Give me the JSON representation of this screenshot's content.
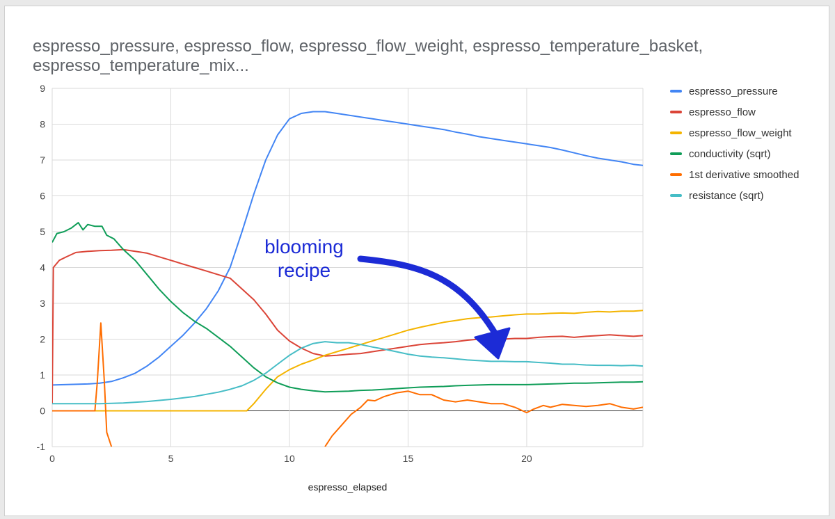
{
  "title_lines": [
    "espresso_pressure, espresso_flow, espresso_flow_weight, espresso_temperature_basket,",
    "espresso_temperature_mix..."
  ],
  "annotation": {
    "line1": "blooming",
    "line2": "recipe",
    "color": "#1c2bd6"
  },
  "chart_data": {
    "type": "line",
    "xlabel": "espresso_elapsed",
    "ylabel": "",
    "xlim": [
      0,
      24.9
    ],
    "ylim": [
      -1,
      9
    ],
    "x_ticks": [
      0,
      5,
      10,
      15,
      20
    ],
    "y_ticks": [
      -1,
      0,
      1,
      2,
      3,
      4,
      5,
      6,
      7,
      8,
      9
    ],
    "grid": true,
    "legend": "right",
    "series": [
      {
        "name": "espresso_pressure",
        "color": "#4285f4",
        "points": [
          [
            0,
            0.72
          ],
          [
            0.5,
            0.73
          ],
          [
            1,
            0.74
          ],
          [
            1.5,
            0.75
          ],
          [
            2,
            0.77
          ],
          [
            2.5,
            0.82
          ],
          [
            3,
            0.92
          ],
          [
            3.5,
            1.05
          ],
          [
            4,
            1.25
          ],
          [
            4.5,
            1.5
          ],
          [
            5,
            1.8
          ],
          [
            5.5,
            2.1
          ],
          [
            6,
            2.45
          ],
          [
            6.5,
            2.85
          ],
          [
            7,
            3.35
          ],
          [
            7.5,
            4.0
          ],
          [
            8,
            5.0
          ],
          [
            8.5,
            6.05
          ],
          [
            9,
            7.0
          ],
          [
            9.5,
            7.7
          ],
          [
            10,
            8.15
          ],
          [
            10.5,
            8.3
          ],
          [
            11,
            8.35
          ],
          [
            11.5,
            8.35
          ],
          [
            12,
            8.3
          ],
          [
            12.5,
            8.25
          ],
          [
            13,
            8.2
          ],
          [
            13.5,
            8.15
          ],
          [
            14,
            8.1
          ],
          [
            14.5,
            8.05
          ],
          [
            15,
            8.0
          ],
          [
            15.5,
            7.95
          ],
          [
            16,
            7.9
          ],
          [
            16.5,
            7.85
          ],
          [
            17,
            7.78
          ],
          [
            17.5,
            7.72
          ],
          [
            18,
            7.65
          ],
          [
            18.5,
            7.6
          ],
          [
            19,
            7.55
          ],
          [
            19.5,
            7.5
          ],
          [
            20,
            7.45
          ],
          [
            20.5,
            7.4
          ],
          [
            21,
            7.35
          ],
          [
            21.5,
            7.28
          ],
          [
            22,
            7.2
          ],
          [
            22.5,
            7.12
          ],
          [
            23,
            7.05
          ],
          [
            23.5,
            7.0
          ],
          [
            24,
            6.95
          ],
          [
            24.5,
            6.88
          ],
          [
            24.9,
            6.85
          ]
        ]
      },
      {
        "name": "espresso_flow",
        "color": "#db4437",
        "points": [
          [
            0,
            0.2
          ],
          [
            0.05,
            4.0
          ],
          [
            0.3,
            4.2
          ],
          [
            0.6,
            4.3
          ],
          [
            1,
            4.42
          ],
          [
            1.5,
            4.45
          ],
          [
            2,
            4.47
          ],
          [
            2.5,
            4.48
          ],
          [
            3,
            4.5
          ],
          [
            3.5,
            4.45
          ],
          [
            4,
            4.4
          ],
          [
            4.5,
            4.3
          ],
          [
            5,
            4.2
          ],
          [
            5.5,
            4.1
          ],
          [
            6,
            4.0
          ],
          [
            6.5,
            3.9
          ],
          [
            7,
            3.8
          ],
          [
            7.5,
            3.7
          ],
          [
            8,
            3.4
          ],
          [
            8.5,
            3.1
          ],
          [
            9,
            2.7
          ],
          [
            9.5,
            2.25
          ],
          [
            10,
            1.95
          ],
          [
            10.5,
            1.75
          ],
          [
            11,
            1.6
          ],
          [
            11.5,
            1.53
          ],
          [
            12,
            1.55
          ],
          [
            12.5,
            1.58
          ],
          [
            13,
            1.6
          ],
          [
            13.5,
            1.65
          ],
          [
            14,
            1.7
          ],
          [
            14.5,
            1.75
          ],
          [
            15,
            1.8
          ],
          [
            15.5,
            1.85
          ],
          [
            16,
            1.88
          ],
          [
            16.5,
            1.9
          ],
          [
            17,
            1.93
          ],
          [
            17.5,
            1.97
          ],
          [
            18,
            2.0
          ],
          [
            18.5,
            2.0
          ],
          [
            19,
            2.0
          ],
          [
            19.5,
            2.02
          ],
          [
            20,
            2.02
          ],
          [
            20.5,
            2.05
          ],
          [
            21,
            2.07
          ],
          [
            21.5,
            2.08
          ],
          [
            22,
            2.05
          ],
          [
            22.5,
            2.08
          ],
          [
            23,
            2.1
          ],
          [
            23.5,
            2.12
          ],
          [
            24,
            2.1
          ],
          [
            24.5,
            2.08
          ],
          [
            24.9,
            2.1
          ]
        ]
      },
      {
        "name": "espresso_flow_weight",
        "color": "#f4b400",
        "points": [
          [
            0,
            0
          ],
          [
            8.2,
            0
          ],
          [
            8.5,
            0.2
          ],
          [
            9,
            0.6
          ],
          [
            9.5,
            0.95
          ],
          [
            10,
            1.15
          ],
          [
            10.5,
            1.3
          ],
          [
            11,
            1.42
          ],
          [
            11.5,
            1.55
          ],
          [
            12,
            1.65
          ],
          [
            12.5,
            1.75
          ],
          [
            13,
            1.85
          ],
          [
            13.5,
            1.95
          ],
          [
            14,
            2.05
          ],
          [
            14.5,
            2.15
          ],
          [
            15,
            2.25
          ],
          [
            15.5,
            2.33
          ],
          [
            16,
            2.4
          ],
          [
            16.5,
            2.47
          ],
          [
            17,
            2.52
          ],
          [
            17.5,
            2.57
          ],
          [
            18,
            2.6
          ],
          [
            18.5,
            2.62
          ],
          [
            19,
            2.65
          ],
          [
            19.5,
            2.68
          ],
          [
            20,
            2.7
          ],
          [
            20.5,
            2.7
          ],
          [
            21,
            2.72
          ],
          [
            21.5,
            2.73
          ],
          [
            22,
            2.72
          ],
          [
            22.5,
            2.75
          ],
          [
            23,
            2.77
          ],
          [
            23.5,
            2.76
          ],
          [
            24,
            2.78
          ],
          [
            24.5,
            2.78
          ],
          [
            24.9,
            2.8
          ]
        ]
      },
      {
        "name": "conductivity (sqrt)",
        "color": "#0f9d58",
        "points": [
          [
            0,
            4.7
          ],
          [
            0.2,
            4.95
          ],
          [
            0.5,
            5.0
          ],
          [
            0.8,
            5.1
          ],
          [
            1.1,
            5.25
          ],
          [
            1.3,
            5.05
          ],
          [
            1.5,
            5.2
          ],
          [
            1.8,
            5.15
          ],
          [
            2.1,
            5.15
          ],
          [
            2.3,
            4.9
          ],
          [
            2.6,
            4.8
          ],
          [
            3,
            4.5
          ],
          [
            3.5,
            4.2
          ],
          [
            4,
            3.8
          ],
          [
            4.5,
            3.4
          ],
          [
            5,
            3.05
          ],
          [
            5.5,
            2.75
          ],
          [
            6,
            2.5
          ],
          [
            6.5,
            2.3
          ],
          [
            7,
            2.05
          ],
          [
            7.5,
            1.8
          ],
          [
            8,
            1.5
          ],
          [
            8.5,
            1.2
          ],
          [
            9,
            0.95
          ],
          [
            9.5,
            0.78
          ],
          [
            10,
            0.66
          ],
          [
            10.5,
            0.6
          ],
          [
            11,
            0.56
          ],
          [
            11.5,
            0.53
          ],
          [
            12,
            0.54
          ],
          [
            12.5,
            0.55
          ],
          [
            13,
            0.57
          ],
          [
            13.5,
            0.58
          ],
          [
            14,
            0.6
          ],
          [
            14.5,
            0.62
          ],
          [
            15,
            0.64
          ],
          [
            15.5,
            0.66
          ],
          [
            16,
            0.67
          ],
          [
            16.5,
            0.68
          ],
          [
            17,
            0.7
          ],
          [
            17.5,
            0.71
          ],
          [
            18,
            0.72
          ],
          [
            18.5,
            0.73
          ],
          [
            19,
            0.73
          ],
          [
            19.5,
            0.73
          ],
          [
            20,
            0.73
          ],
          [
            20.5,
            0.74
          ],
          [
            21,
            0.75
          ],
          [
            21.5,
            0.76
          ],
          [
            22,
            0.77
          ],
          [
            22.5,
            0.77
          ],
          [
            23,
            0.78
          ],
          [
            23.5,
            0.79
          ],
          [
            24,
            0.8
          ],
          [
            24.5,
            0.8
          ],
          [
            24.9,
            0.81
          ]
        ]
      },
      {
        "name": "1st derivative smoothed",
        "color": "#ff6d00",
        "points": [
          [
            0,
            0
          ],
          [
            1.8,
            0
          ],
          [
            1.9,
            0.8
          ],
          [
            2.05,
            2.45
          ],
          [
            2.2,
            0.8
          ],
          [
            2.3,
            -0.6
          ],
          [
            2.5,
            -1.0
          ],
          [
            null,
            null
          ],
          [
            11.5,
            -1.0
          ],
          [
            11.8,
            -0.7
          ],
          [
            12.2,
            -0.4
          ],
          [
            12.6,
            -0.1
          ],
          [
            13,
            0.1
          ],
          [
            13.3,
            0.3
          ],
          [
            13.6,
            0.28
          ],
          [
            14,
            0.4
          ],
          [
            14.5,
            0.5
          ],
          [
            15,
            0.55
          ],
          [
            15.5,
            0.45
          ],
          [
            16,
            0.45
          ],
          [
            16.5,
            0.3
          ],
          [
            17,
            0.25
          ],
          [
            17.5,
            0.3
          ],
          [
            18,
            0.25
          ],
          [
            18.5,
            0.2
          ],
          [
            19,
            0.2
          ],
          [
            19.5,
            0.1
          ],
          [
            20,
            -0.05
          ],
          [
            20.3,
            0.05
          ],
          [
            20.7,
            0.15
          ],
          [
            21,
            0.1
          ],
          [
            21.5,
            0.18
          ],
          [
            22,
            0.15
          ],
          [
            22.5,
            0.12
          ],
          [
            23,
            0.15
          ],
          [
            23.5,
            0.2
          ],
          [
            24,
            0.1
          ],
          [
            24.5,
            0.05
          ],
          [
            24.9,
            0.1
          ]
        ]
      },
      {
        "name": "resistance (sqrt)",
        "color": "#46bdc6",
        "points": [
          [
            0,
            0.2
          ],
          [
            1,
            0.2
          ],
          [
            2,
            0.2
          ],
          [
            3,
            0.22
          ],
          [
            4,
            0.26
          ],
          [
            5,
            0.32
          ],
          [
            6,
            0.4
          ],
          [
            7,
            0.52
          ],
          [
            7.5,
            0.6
          ],
          [
            8,
            0.7
          ],
          [
            8.5,
            0.85
          ],
          [
            9,
            1.05
          ],
          [
            9.5,
            1.3
          ],
          [
            10,
            1.55
          ],
          [
            10.5,
            1.75
          ],
          [
            11,
            1.88
          ],
          [
            11.5,
            1.93
          ],
          [
            12,
            1.9
          ],
          [
            12.5,
            1.9
          ],
          [
            13,
            1.85
          ],
          [
            13.5,
            1.78
          ],
          [
            14,
            1.72
          ],
          [
            14.5,
            1.65
          ],
          [
            15,
            1.58
          ],
          [
            15.5,
            1.53
          ],
          [
            16,
            1.5
          ],
          [
            16.5,
            1.48
          ],
          [
            17,
            1.45
          ],
          [
            17.5,
            1.42
          ],
          [
            18,
            1.4
          ],
          [
            18.5,
            1.38
          ],
          [
            19,
            1.38
          ],
          [
            19.5,
            1.37
          ],
          [
            20,
            1.37
          ],
          [
            20.5,
            1.35
          ],
          [
            21,
            1.33
          ],
          [
            21.5,
            1.3
          ],
          [
            22,
            1.3
          ],
          [
            22.5,
            1.28
          ],
          [
            23,
            1.27
          ],
          [
            23.5,
            1.27
          ],
          [
            24,
            1.26
          ],
          [
            24.5,
            1.27
          ],
          [
            24.9,
            1.25
          ]
        ]
      }
    ]
  }
}
